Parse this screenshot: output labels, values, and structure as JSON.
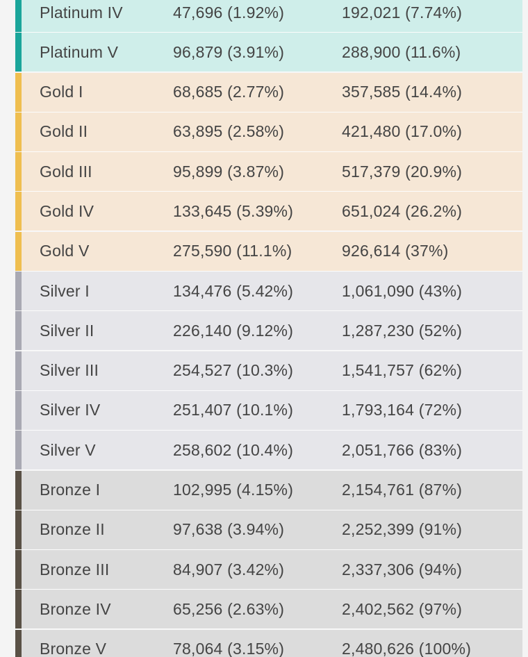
{
  "colors": {
    "platinum": "#1aa59a",
    "gold": "#efbe4f",
    "silver": "#a9a9b3",
    "bronze": "#5a5146"
  },
  "rows": [
    {
      "tier": "Platinum IV",
      "players": "47,696 (1.92%)",
      "cumulative": "192,021 (7.74%)"
    },
    {
      "tier": "Platinum V",
      "players": "96,879 (3.91%)",
      "cumulative": "288,900 (11.6%)"
    },
    {
      "tier": "Gold I",
      "players": "68,685 (2.77%)",
      "cumulative": "357,585 (14.4%)"
    },
    {
      "tier": "Gold II",
      "players": "63,895 (2.58%)",
      "cumulative": "421,480 (17.0%)"
    },
    {
      "tier": "Gold III",
      "players": "95,899 (3.87%)",
      "cumulative": "517,379 (20.9%)"
    },
    {
      "tier": "Gold IV",
      "players": "133,645 (5.39%)",
      "cumulative": "651,024 (26.2%)"
    },
    {
      "tier": "Gold V",
      "players": "275,590 (11.1%)",
      "cumulative": "926,614 (37%)"
    },
    {
      "tier": "Silver I",
      "players": "134,476 (5.42%)",
      "cumulative": "1,061,090 (43%)"
    },
    {
      "tier": "Silver II",
      "players": "226,140 (9.12%)",
      "cumulative": "1,287,230 (52%)"
    },
    {
      "tier": "Silver III",
      "players": "254,527 (10.3%)",
      "cumulative": "1,541,757 (62%)"
    },
    {
      "tier": "Silver IV",
      "players": "251,407 (10.1%)",
      "cumulative": "1,793,164 (72%)"
    },
    {
      "tier": "Silver V",
      "players": "258,602 (10.4%)",
      "cumulative": "2,051,766 (83%)"
    },
    {
      "tier": "Bronze I",
      "players": "102,995 (4.15%)",
      "cumulative": "2,154,761 (87%)"
    },
    {
      "tier": "Bronze II",
      "players": "97,638 (3.94%)",
      "cumulative": "2,252,399 (91%)"
    },
    {
      "tier": "Bronze III",
      "players": "84,907 (3.42%)",
      "cumulative": "2,337,306 (94%)"
    },
    {
      "tier": "Bronze IV",
      "players": "65,256 (2.63%)",
      "cumulative": "2,402,562 (97%)"
    },
    {
      "tier": "Bronze V",
      "players": "78,064 (3.15%)",
      "cumulative": "2,480,626 (100%)"
    }
  ]
}
